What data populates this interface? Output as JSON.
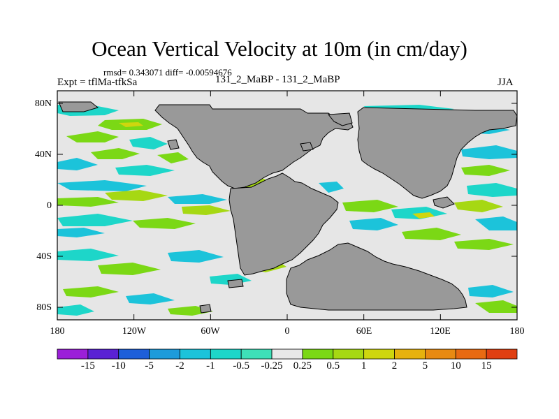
{
  "title": "Ocean Vertical Velocity at 10m (in cm/day)",
  "stats": "rmsd= 0.343071 diff= -0.00594676",
  "experiment": "Expt = tflMa-tfkSa",
  "runs": "131_2_MaBP - 131_2_MaBP",
  "season": "JJA",
  "y_ticks": [
    "80N",
    "40N",
    "0",
    "40S",
    "80S"
  ],
  "x_ticks": [
    "180",
    "120W",
    "60W",
    "0",
    "60E",
    "120E",
    "180"
  ],
  "colorbar": {
    "labels": [
      "-15",
      "-10",
      "-5",
      "-2",
      "-1",
      "-0.5",
      "-0.25",
      "0.25",
      "0.5",
      "1",
      "2",
      "5",
      "10",
      "15"
    ],
    "colors": [
      "#9b1fd8",
      "#5a22d4",
      "#1e5fd9",
      "#1e9bdb",
      "#1cc3da",
      "#1dd6c9",
      "#3ee0b8",
      "#e8e8e8",
      "#7bd815",
      "#a6d813",
      "#cfd60e",
      "#e6b20e",
      "#e88a12",
      "#e86a12",
      "#e03f12"
    ]
  },
  "land_color": "#999999",
  "ocean_color": "#e6e6e6"
}
